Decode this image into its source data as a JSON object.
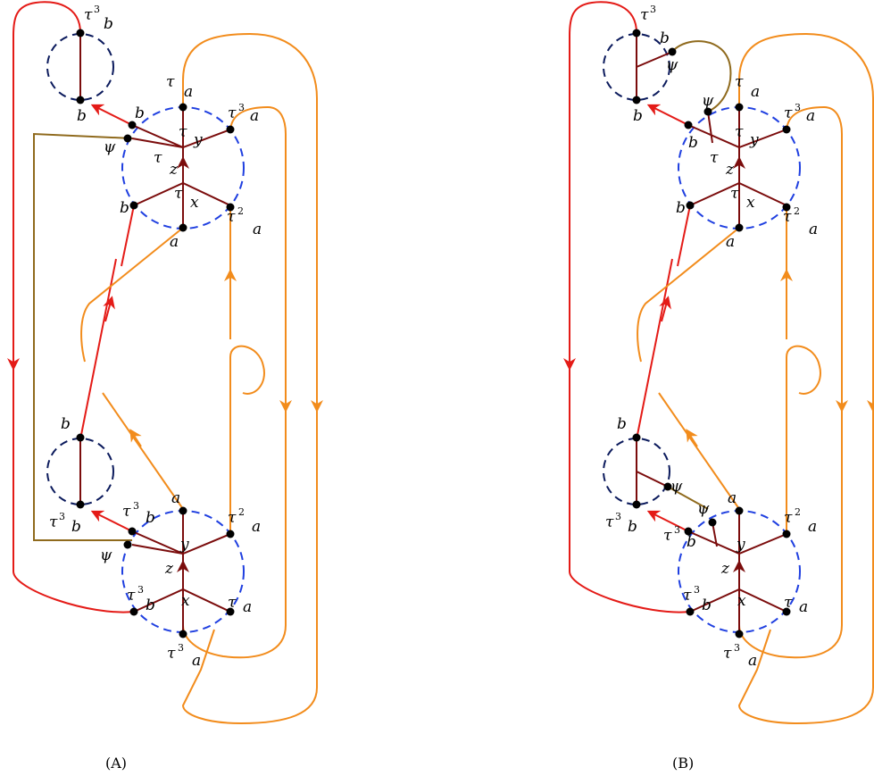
{
  "colors": {
    "red": "#e41b17",
    "orange": "#f28c1c",
    "maroon": "#7b0c0c",
    "olive": "#8f6a1d",
    "blue_circle": "#1f3fe0",
    "navy_circle": "#0b1a5c",
    "dot": "#000000"
  },
  "labels": {
    "a": "a",
    "b": "b",
    "x": "x",
    "y": "y",
    "z": "z",
    "psi": "ψ",
    "tau": "𝜏",
    "sq": "2",
    "cube": "3"
  },
  "panels": [
    {
      "caption": "(A)"
    },
    {
      "caption": "(B)"
    }
  ]
}
